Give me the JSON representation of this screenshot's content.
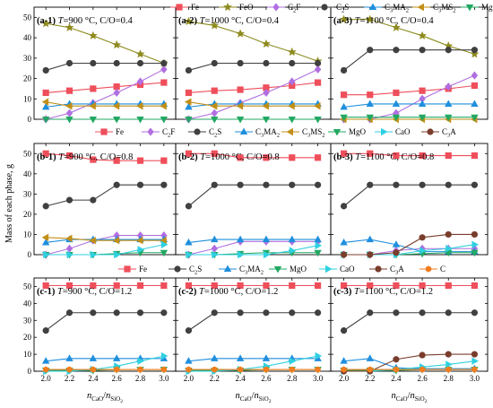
{
  "figure": {
    "ylabel": "Mass of each phase, g",
    "xlabel": "nCaO/nSiO2",
    "x_ticks": [
      2.0,
      2.2,
      2.4,
      2.6,
      2.8,
      3.0
    ],
    "y_ticks": [
      0,
      10,
      20,
      30,
      40,
      50
    ],
    "xlim": [
      1.9,
      3.1
    ],
    "ylim": [
      0,
      55
    ]
  },
  "series_styles": {
    "Fe": {
      "color": "#ee4f5b",
      "marker": "square",
      "label": "Fe"
    },
    "FeO": {
      "color": "#8e8b1f",
      "marker": "star",
      "label": "FeO"
    },
    "C2F": {
      "color": "#b06fe0",
      "marker": "diamond",
      "label": "C2F"
    },
    "C2S": {
      "color": "#404040",
      "marker": "circle",
      "label": "C2S"
    },
    "C3MA2": {
      "color": "#1f8fdd",
      "marker": "triangle",
      "label": "C3MA2"
    },
    "C3MS2": {
      "color": "#c28f16",
      "marker": "tri-left",
      "label": "C3MS2"
    },
    "MgO": {
      "color": "#22a862",
      "marker": "tri-down",
      "label": "MgO"
    },
    "CaO": {
      "color": "#2fd0e0",
      "marker": "tri-right",
      "label": "CaO"
    },
    "C3A": {
      "color": "#7a3d2c",
      "marker": "circle",
      "label": "C3A"
    },
    "C": {
      "color": "#f07d1e",
      "marker": "hexagon",
      "label": "C"
    }
  },
  "legends": {
    "a": [
      "Fe",
      "FeO",
      "C2F",
      "C2S",
      "C3MA2",
      "C3MS2",
      "MgO"
    ],
    "b": [
      "Fe",
      "C2F",
      "C2S",
      "C3MA2",
      "C3MS2",
      "MgO",
      "CaO",
      "C3A"
    ],
    "c": [
      "Fe",
      "C2S",
      "C3MA2",
      "MgO",
      "CaO",
      "C3A",
      "C"
    ]
  },
  "chart_data": [
    {
      "id": "(a-1)",
      "title": "T=900 °C, C/O=0.4",
      "type": "line",
      "x": [
        2.0,
        2.2,
        2.4,
        2.6,
        2.8,
        3.0
      ],
      "series": [
        {
          "name": "Fe",
          "values": [
            13,
            14,
            15,
            16,
            17,
            18
          ]
        },
        {
          "name": "FeO",
          "values": [
            47,
            45,
            41,
            36.5,
            32,
            27.5
          ]
        },
        {
          "name": "C2F",
          "values": [
            0,
            3,
            8,
            13,
            18.5,
            24.5
          ]
        },
        {
          "name": "C2S",
          "values": [
            24,
            27.5,
            27.5,
            27.5,
            27.5,
            27.5
          ]
        },
        {
          "name": "C3MA2",
          "values": [
            6,
            7.5,
            7.5,
            7.5,
            7.5,
            7.5
          ]
        },
        {
          "name": "C3MS2",
          "values": [
            8.5,
            6.5,
            6.5,
            6.5,
            6.5,
            6.5
          ]
        },
        {
          "name": "MgO",
          "values": [
            0,
            0,
            0,
            0,
            0,
            0
          ]
        }
      ]
    },
    {
      "id": "(a-2)",
      "title": "T=1000 °C, C/O=0.4",
      "type": "line",
      "x": [
        2.0,
        2.2,
        2.4,
        2.6,
        2.8,
        3.0
      ],
      "series": [
        {
          "name": "Fe",
          "values": [
            13,
            14,
            14.5,
            15.5,
            16.5,
            18
          ]
        },
        {
          "name": "FeO",
          "values": [
            48,
            46,
            42,
            37,
            33,
            28.5
          ]
        },
        {
          "name": "C2F",
          "values": [
            0,
            3,
            8,
            13,
            18.5,
            24.5
          ]
        },
        {
          "name": "C2S",
          "values": [
            24,
            27.5,
            27.5,
            27.5,
            27.5,
            27.5
          ]
        },
        {
          "name": "C3MA2",
          "values": [
            6,
            7.5,
            7.5,
            7.5,
            7.5,
            7.5
          ]
        },
        {
          "name": "C3MS2",
          "values": [
            8.5,
            6.5,
            6.5,
            6.5,
            6.5,
            6.5
          ]
        },
        {
          "name": "MgO",
          "values": [
            0,
            0,
            0,
            0,
            0,
            0
          ]
        }
      ]
    },
    {
      "id": "(a-3)",
      "title": "T=1100 °C, C/O=0.4",
      "type": "line",
      "x": [
        2.0,
        2.2,
        2.4,
        2.6,
        2.8,
        3.0
      ],
      "series": [
        {
          "name": "Fe",
          "values": [
            12,
            12,
            13,
            14,
            15,
            16.5
          ]
        },
        {
          "name": "FeO",
          "values": [
            49,
            49,
            45,
            41,
            36,
            32
          ]
        },
        {
          "name": "C2F",
          "values": [
            0,
            0,
            3,
            10,
            16,
            21.5
          ]
        },
        {
          "name": "C2S",
          "values": [
            24,
            34,
            34,
            34,
            34,
            34
          ]
        },
        {
          "name": "C3MA2",
          "values": [
            6,
            7.5,
            7.5,
            7.5,
            7.5,
            7.5
          ]
        },
        {
          "name": "C3MS2",
          "values": [
            0,
            0,
            0,
            0,
            0,
            0
          ]
        },
        {
          "name": "MgO",
          "values": [
            1,
            1,
            1,
            1,
            1,
            1
          ]
        }
      ]
    },
    {
      "id": "(b-1)",
      "title": "T=900 °C, C/O=0.8",
      "type": "line",
      "x": [
        2.0,
        2.2,
        2.4,
        2.6,
        2.8,
        3.0
      ],
      "series": [
        {
          "name": "Fe",
          "values": [
            50,
            49,
            47,
            46.5,
            46.5,
            46.5
          ]
        },
        {
          "name": "C2F",
          "values": [
            0,
            3,
            7,
            9.5,
            9.5,
            9.5
          ]
        },
        {
          "name": "C2S",
          "values": [
            24,
            27,
            27,
            34.5,
            34.5,
            34.5
          ]
        },
        {
          "name": "C3MA2",
          "values": [
            6,
            7.5,
            7.5,
            7.5,
            7.5,
            7.5
          ]
        },
        {
          "name": "C3MS2",
          "values": [
            8.5,
            8,
            7,
            7,
            7,
            7
          ]
        },
        {
          "name": "MgO",
          "values": [
            0,
            0,
            0,
            0.5,
            1,
            1
          ]
        },
        {
          "name": "CaO",
          "values": [
            0,
            0,
            0,
            0,
            2.5,
            5
          ]
        }
      ]
    },
    {
      "id": "(b-2)",
      "title": "T=1000 °C, C/O=0.8",
      "type": "line",
      "x": [
        2.0,
        2.2,
        2.4,
        2.6,
        2.8,
        3.0
      ],
      "series": [
        {
          "name": "Fe",
          "values": [
            50,
            50,
            48,
            48,
            48,
            48
          ]
        },
        {
          "name": "C2F",
          "values": [
            0,
            3,
            6.5,
            6.5,
            6.5,
            6.5
          ]
        },
        {
          "name": "C2S",
          "values": [
            24,
            34.5,
            34.5,
            34.5,
            34.5,
            34.5
          ]
        },
        {
          "name": "C3MA2",
          "values": [
            6,
            7.5,
            7.5,
            7.5,
            7.5,
            7.5
          ]
        },
        {
          "name": "MgO",
          "values": [
            0,
            0,
            0.5,
            1,
            1,
            1
          ]
        },
        {
          "name": "CaO",
          "values": [
            0,
            0,
            0,
            0,
            2,
            4.5
          ]
        }
      ]
    },
    {
      "id": "(b-3)",
      "title": "T=1100 °C, C/O=0.8",
      "type": "line",
      "x": [
        2.0,
        2.2,
        2.4,
        2.6,
        2.8,
        3.0
      ],
      "series": [
        {
          "name": "Fe",
          "values": [
            50,
            50,
            49,
            49,
            49,
            49
          ]
        },
        {
          "name": "C2F",
          "values": [
            0,
            0,
            2,
            3,
            3,
            3
          ]
        },
        {
          "name": "C2S",
          "values": [
            24,
            34.5,
            34.5,
            34.5,
            34.5,
            34.5
          ]
        },
        {
          "name": "C3MA2",
          "values": [
            6,
            7.5,
            5,
            1.5,
            1.5,
            1.5
          ]
        },
        {
          "name": "MgO",
          "values": [
            0,
            0,
            0,
            0.5,
            1,
            1
          ]
        },
        {
          "name": "CaO",
          "values": [
            0,
            0,
            0,
            2,
            3,
            5
          ]
        },
        {
          "name": "C3A",
          "values": [
            0,
            0,
            1,
            8.5,
            10,
            10
          ]
        }
      ]
    },
    {
      "id": "(c-1)",
      "title": "T=900 °C, C/O=1.2",
      "type": "line",
      "x": [
        2.0,
        2.2,
        2.4,
        2.6,
        2.8,
        3.0
      ],
      "series": [
        {
          "name": "Fe",
          "values": [
            50.5,
            50.5,
            50.5,
            50.5,
            50.5,
            50.5
          ]
        },
        {
          "name": "C2S",
          "values": [
            24,
            34.5,
            34.5,
            34.5,
            34.5,
            34.5
          ]
        },
        {
          "name": "C3MA2",
          "values": [
            6,
            7.5,
            7.5,
            7.5,
            7.5,
            7.5
          ]
        },
        {
          "name": "MgO",
          "values": [
            0.5,
            0.5,
            0.5,
            1,
            1,
            1
          ]
        },
        {
          "name": "CaO",
          "values": [
            0,
            0,
            1,
            3,
            6,
            9
          ]
        },
        {
          "name": "C",
          "values": [
            1,
            1,
            1,
            1,
            1,
            1
          ]
        }
      ]
    },
    {
      "id": "(c-2)",
      "title": "T=1000 °C, C/O=1.2",
      "type": "line",
      "x": [
        2.0,
        2.2,
        2.4,
        2.6,
        2.8,
        3.0
      ],
      "series": [
        {
          "name": "Fe",
          "values": [
            50.5,
            50.5,
            50.5,
            50.5,
            50.5,
            50.5
          ]
        },
        {
          "name": "C2S",
          "values": [
            24,
            34.5,
            34.5,
            34.5,
            34.5,
            34.5
          ]
        },
        {
          "name": "C3MA2",
          "values": [
            6,
            7.5,
            7.5,
            7.5,
            7.5,
            7.5
          ]
        },
        {
          "name": "MgO",
          "values": [
            0.5,
            0.5,
            0.5,
            1,
            1,
            1
          ]
        },
        {
          "name": "CaO",
          "values": [
            0,
            0,
            1,
            3,
            6,
            9
          ]
        },
        {
          "name": "C",
          "values": [
            1,
            1,
            1,
            1,
            1,
            1
          ]
        }
      ]
    },
    {
      "id": "(c-3)",
      "title": "T=1100 °C, C/O=1.2",
      "type": "line",
      "x": [
        2.0,
        2.2,
        2.4,
        2.6,
        2.8,
        3.0
      ],
      "series": [
        {
          "name": "Fe",
          "values": [
            50.5,
            50.5,
            50.5,
            50.5,
            50.5,
            50.5
          ]
        },
        {
          "name": "C2S",
          "values": [
            24,
            34.5,
            34.5,
            34.5,
            34.5,
            34.5
          ]
        },
        {
          "name": "C3MA2",
          "values": [
            6,
            7.5,
            2,
            1.5,
            1.5,
            1.5
          ]
        },
        {
          "name": "MgO",
          "values": [
            0.5,
            0.5,
            0.5,
            1,
            1,
            1
          ]
        },
        {
          "name": "CaO",
          "values": [
            0,
            0,
            1,
            2.5,
            4,
            6
          ]
        },
        {
          "name": "C3A",
          "values": [
            0,
            0,
            7,
            9.5,
            10,
            10
          ]
        },
        {
          "name": "C",
          "values": [
            1,
            1,
            1,
            1,
            1,
            1
          ]
        }
      ]
    }
  ]
}
